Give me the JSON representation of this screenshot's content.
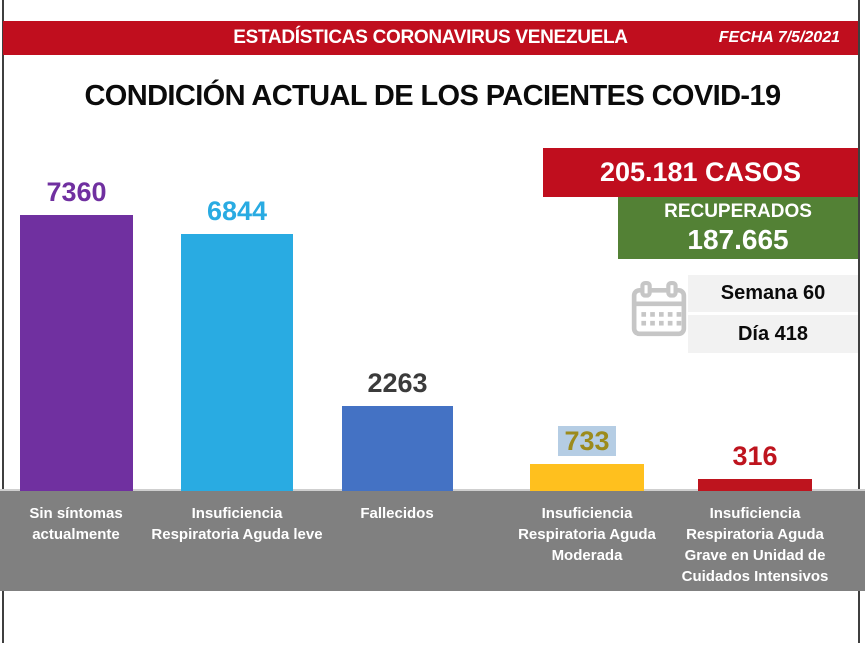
{
  "frame": {
    "border_color": "#3F3F3F"
  },
  "banner": {
    "title": "ESTADÍSTICAS CORONAVIRUS VENEZUELA",
    "date": "FECHA 7/5/2021",
    "bg": "#C00E1E"
  },
  "main_title": {
    "text": "CONDICIÓN ACTUAL DE LOS PACIENTES COVID-19"
  },
  "summary": {
    "cases": {
      "text": "205.181 CASOS",
      "bg": "#C00E1E"
    },
    "recovered": {
      "label": "RECUPERADOS",
      "value": "187.665",
      "bg": "#538135"
    },
    "week": {
      "text": "Semana 60",
      "bg": "#F2F2F2"
    },
    "day": {
      "text": "Día 418",
      "bg": "#F2F2F2"
    },
    "calendar_icon_color": "#C6C6C6"
  },
  "chart_data": {
    "type": "bar",
    "title": "CONDICIÓN ACTUAL DE LOS PACIENTES COVID-19",
    "categories": [
      "Sin síntomas actualmente",
      "Insuficiencia Respiratoria Aguda leve",
      "Fallecidos",
      "Insuficiencia Respiratoria Aguda Moderada",
      "Insuficiencia Respiratoria Aguda Grave en Unidad de Cuidados Intensivos"
    ],
    "category_display": [
      "Sin síntomas\nactualmente",
      "Insuficiencia\nRespiratoria Aguda leve",
      "Fallecidos",
      "Insuficiencia\nRespiratoria Aguda\nModerada",
      "Insuficiencia\nRespiratoria Aguda\nGrave en Unidad de\nCuidados Intensivos"
    ],
    "values": [
      7360,
      6844,
      2263,
      733,
      316
    ],
    "value_labels": [
      "7360",
      "6844",
      "2263",
      "733",
      "316"
    ],
    "bar_colors": [
      "#7030A0",
      "#29ABE2",
      "#4472C4",
      "#FFC01E",
      "#BE141E"
    ],
    "value_label_colors": [
      "#7030A0",
      "#29ABE2",
      "#3B3B3B",
      "#9C8B1C",
      "#BE141E"
    ],
    "highlighted_value_index": 3,
    "highlight_bg": "#B5CDE4",
    "axis": {
      "baseline_strip_color": "#808080",
      "baseline_line_color": "#CFCFCF"
    },
    "xlabel": "",
    "ylabel": "",
    "ylim": [
      0,
      7800
    ],
    "grid": false,
    "legend": false
  }
}
